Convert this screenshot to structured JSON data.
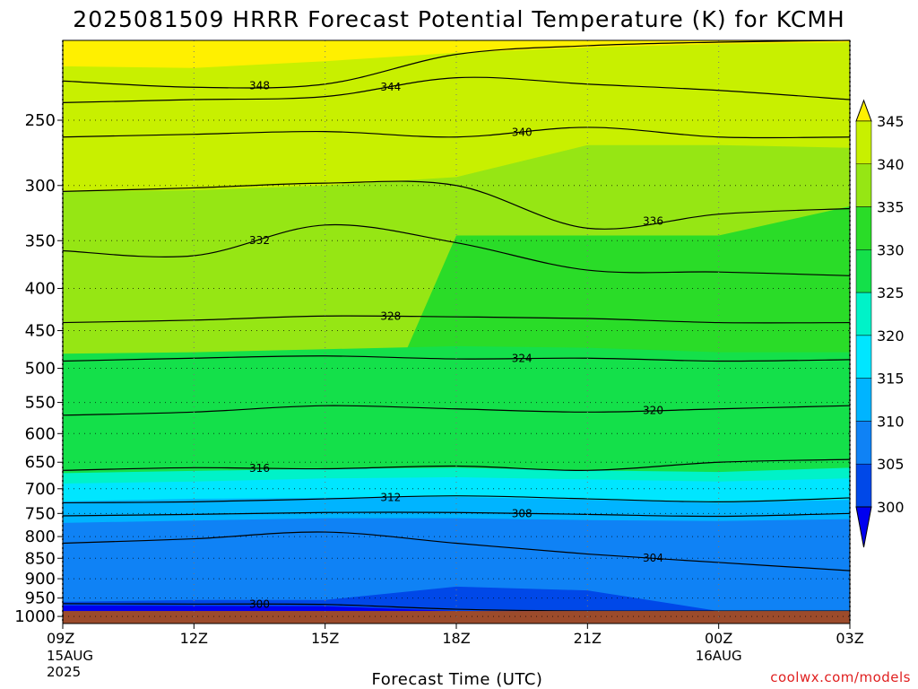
{
  "chart_data": {
    "type": "heatmap",
    "title": "2025081509 HRRR Forecast Potential Temperature (K) for KCMH",
    "xlabel": "Forecast Time (UTC)",
    "ylabel": "",
    "credit": "coolwx.com/models",
    "x_ticks": [
      {
        "label": "09Z",
        "sub1": "15AUG",
        "sub2": "2025",
        "hour": 0
      },
      {
        "label": "12Z",
        "sub1": "",
        "sub2": "",
        "hour": 3
      },
      {
        "label": "15Z",
        "sub1": "",
        "sub2": "",
        "hour": 6
      },
      {
        "label": "18Z",
        "sub1": "",
        "sub2": "",
        "hour": 9
      },
      {
        "label": "21Z",
        "sub1": "",
        "sub2": "",
        "hour": 12
      },
      {
        "label": "00Z",
        "sub1": "16AUG",
        "sub2": "",
        "hour": 15
      },
      {
        "label": "03Z",
        "sub1": "",
        "sub2": "",
        "hour": 18
      }
    ],
    "xlim": [
      0,
      18
    ],
    "y_ticks": [
      250,
      300,
      350,
      400,
      450,
      500,
      550,
      600,
      650,
      700,
      750,
      800,
      850,
      900,
      950,
      1000
    ],
    "ylim_hpa": [
      200,
      1020
    ],
    "y_scale": "log-pressure",
    "ground_level_hpa": 985,
    "ground_color": "#9c4b2b",
    "colorbar": {
      "levels": [
        300,
        305,
        310,
        315,
        320,
        325,
        330,
        335,
        340,
        345
      ],
      "colors": [
        "#0000f0",
        "#0048e8",
        "#0f82f5",
        "#00b4ff",
        "#00e6ff",
        "#00f2c8",
        "#14e04a",
        "#2adc28",
        "#96e614",
        "#c8f000",
        "#fff000"
      ]
    },
    "filled_levels_hpa": {
      "hours": [
        0,
        3,
        6,
        9,
        12,
        15,
        18
      ],
      "rows": [
        {
          "level": 345,
          "values": [
            215,
            216,
            212,
            207,
            204,
            202,
            201
          ]
        },
        {
          "level": 340,
          "values": [
            305,
            304,
            300,
            293,
            268,
            268,
            270
          ]
        },
        {
          "level": 335,
          "values": [
            800,
            800,
            800,
            345,
            345,
            345,
            318
          ]
        },
        {
          "level": 330,
          "values": [
            480,
            478,
            474,
            470,
            472,
            478,
            478
          ]
        },
        {
          "level": 325,
          "values": [
            670,
            666,
            662,
            660,
            665,
            668,
            660
          ]
        },
        {
          "level": 320,
          "values": [
            690,
            686,
            680,
            678,
            682,
            686,
            680
          ]
        },
        {
          "level": 315,
          "values": [
            725,
            720,
            718,
            716,
            722,
            728,
            722
          ]
        },
        {
          "level": 310,
          "values": [
            770,
            765,
            760,
            760,
            764,
            766,
            762
          ]
        },
        {
          "level": 305,
          "values": [
            960,
            955,
            955,
            920,
            930,
            985,
            985
          ]
        },
        {
          "level": 300,
          "values": [
            970,
            971,
            972,
            985,
            985,
            985,
            985
          ]
        }
      ]
    },
    "contours": [
      {
        "level": 348,
        "label": true,
        "hours": [
          0,
          3,
          6,
          9,
          12,
          15,
          18
        ],
        "hpa": [
          224,
          228,
          226,
          208,
          203,
          201,
          200
        ]
      },
      {
        "level": 344,
        "label": true,
        "hours": [
          0,
          3,
          6,
          9,
          12,
          15,
          18
        ],
        "hpa": [
          238,
          236,
          234,
          222,
          226,
          230,
          236
        ]
      },
      {
        "level": 340,
        "label": true,
        "hours": [
          0,
          3,
          6,
          9,
          12,
          15,
          18
        ],
        "hpa": [
          262,
          260,
          258,
          262,
          255,
          262,
          262
        ]
      },
      {
        "level": 336,
        "label": true,
        "hours": [
          0,
          3,
          6,
          9,
          12,
          15,
          18
        ],
        "hpa": [
          305,
          302,
          298,
          300,
          338,
          325,
          320
        ]
      },
      {
        "level": 332,
        "label": true,
        "hours": [
          0,
          3,
          6,
          9,
          12,
          15,
          18
        ],
        "hpa": [
          360,
          365,
          335,
          352,
          380,
          382,
          386
        ]
      },
      {
        "level": 328,
        "label": true,
        "hours": [
          0,
          3,
          6,
          9,
          12,
          15,
          18
        ],
        "hpa": [
          440,
          437,
          432,
          433,
          435,
          440,
          440
        ]
      },
      {
        "level": 324,
        "label": true,
        "hours": [
          0,
          3,
          6,
          9,
          12,
          15,
          18
        ],
        "hpa": [
          490,
          486,
          483,
          487,
          486,
          490,
          488
        ]
      },
      {
        "level": 320,
        "label": true,
        "hours": [
          0,
          3,
          6,
          9,
          12,
          15,
          18
        ],
        "hpa": [
          570,
          565,
          555,
          560,
          565,
          560,
          555
        ]
      },
      {
        "level": 316,
        "label": true,
        "hours": [
          0,
          3,
          6,
          9,
          12,
          15,
          18
        ],
        "hpa": [
          665,
          660,
          662,
          657,
          665,
          650,
          645
        ]
      },
      {
        "level": 312,
        "label": true,
        "hours": [
          0,
          3,
          6,
          9,
          12,
          15,
          18
        ],
        "hpa": [
          728,
          726,
          720,
          714,
          720,
          726,
          718
        ]
      },
      {
        "level": 308,
        "label": true,
        "hours": [
          0,
          3,
          6,
          9,
          12,
          15,
          18
        ],
        "hpa": [
          755,
          752,
          748,
          748,
          752,
          756,
          750
        ]
      },
      {
        "level": 304,
        "label": true,
        "hours": [
          0,
          3,
          6,
          9,
          12,
          15,
          18
        ],
        "hpa": [
          815,
          805,
          790,
          815,
          840,
          860,
          880
        ]
      },
      {
        "level": 300,
        "label": true,
        "hours": [
          0,
          3,
          6,
          9,
          12,
          15,
          18
        ],
        "hpa": [
          965,
          966,
          967,
          980,
          985,
          985,
          985
        ]
      }
    ]
  }
}
